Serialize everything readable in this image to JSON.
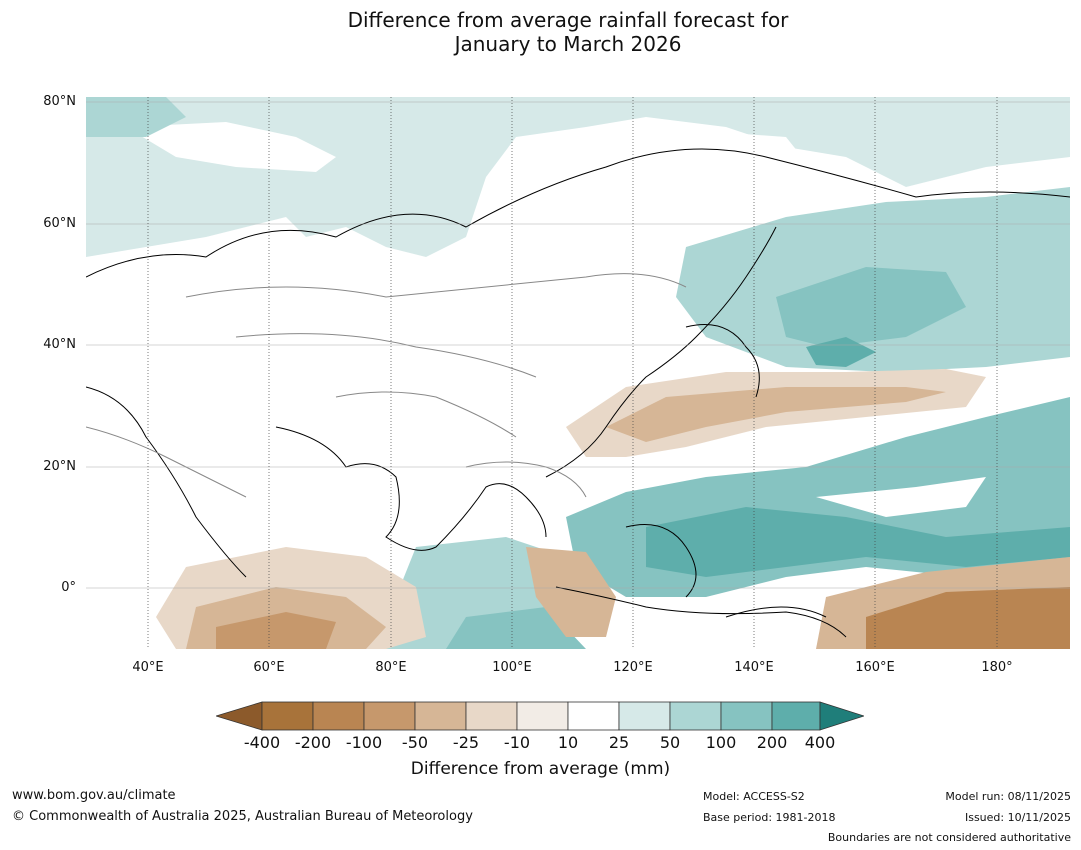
{
  "title": {
    "line1": "Difference from average rainfall forecast for",
    "line2": "January to March 2026"
  },
  "map": {
    "lat_labels": [
      "80°N",
      "60°N",
      "40°N",
      "20°N",
      "0°"
    ],
    "lon_labels": [
      "40°E",
      "60°E",
      "80°E",
      "100°E",
      "120°E",
      "140°E",
      "160°E",
      "180°"
    ]
  },
  "legend": {
    "ticks": [
      "-400",
      "-200",
      "-100",
      "-50",
      "-25",
      "-10",
      "10",
      "25",
      "50",
      "100",
      "200",
      "400"
    ],
    "colors": [
      "#a8733a",
      "#b98552",
      "#c6986c",
      "#d6b696",
      "#e8d8c8",
      "#f2ece6",
      "#ffffff",
      "#d6e9e8",
      "#acd6d4",
      "#86c3c1",
      "#5eaeab",
      "#359a96",
      "#1f7e7a"
    ],
    "title": "Difference from average (mm)"
  },
  "footer": {
    "website": "www.bom.gov.au/climate",
    "copyright": "© Commonwealth of Australia 2025, Australian Bureau of Meteorology",
    "model": "Model: ACCESS-S2",
    "base_period": "Base period: 1981-2018",
    "model_run": "Model run: 08/11/2025",
    "issued": "Issued: 10/11/2025",
    "disclaimer": "Boundaries are not considered authoritative"
  }
}
